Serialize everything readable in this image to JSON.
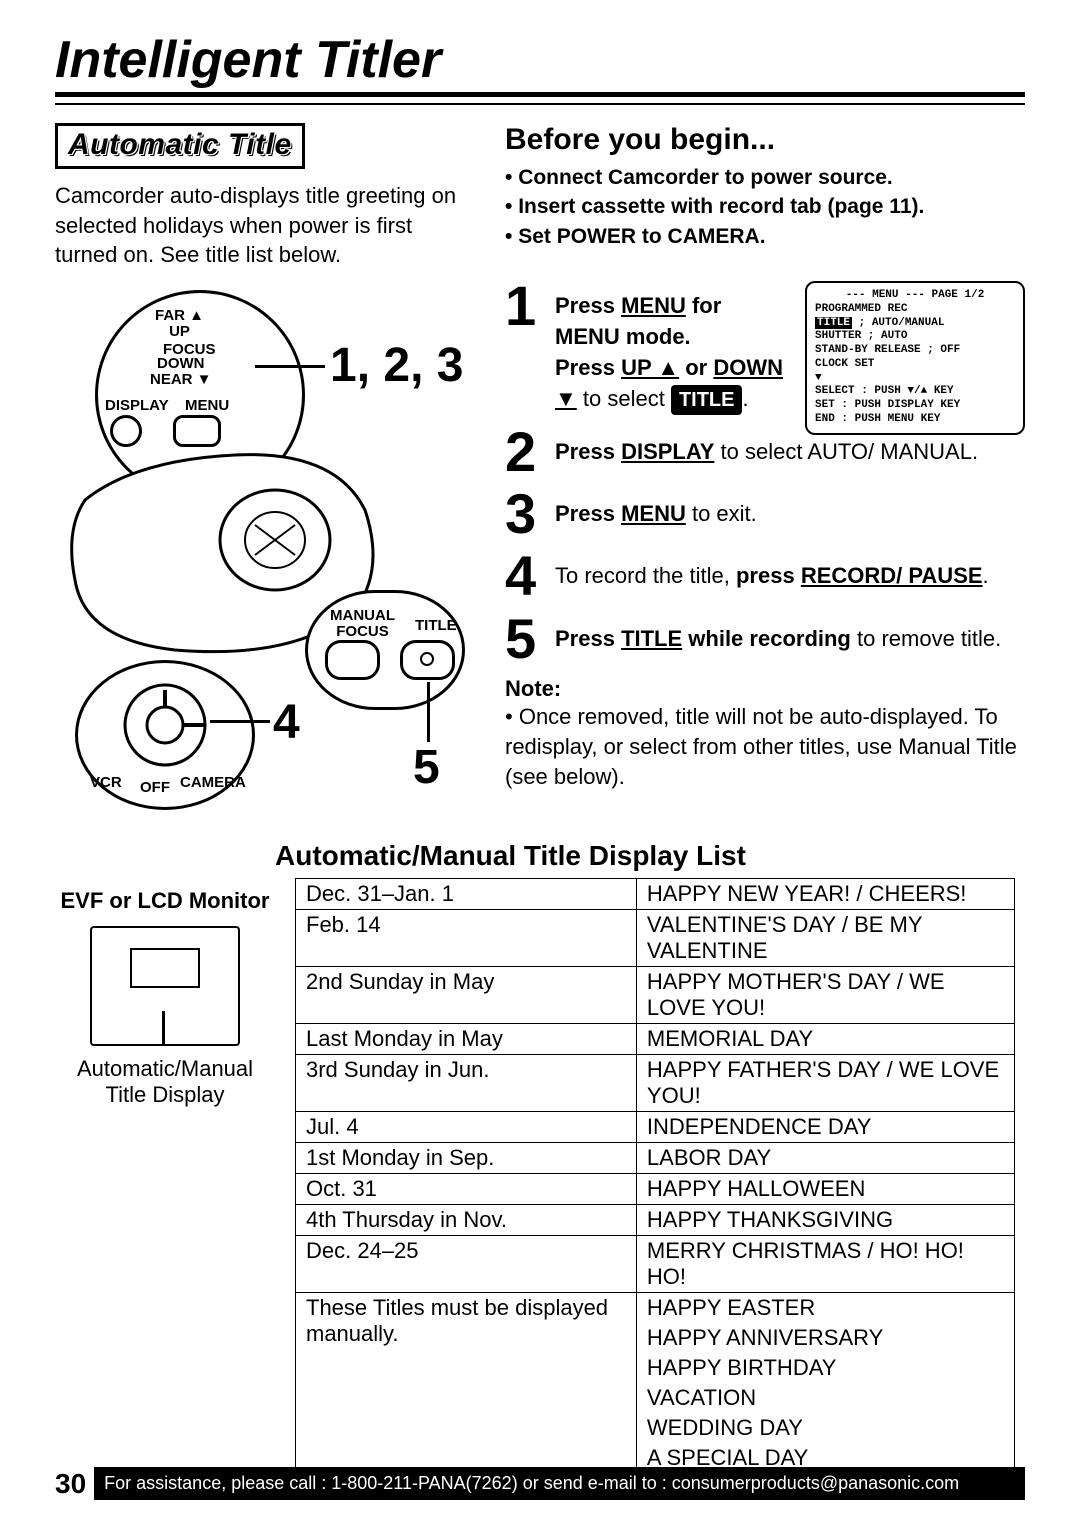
{
  "page_title": "Intelligent Titler",
  "section_title": "Automatic Title",
  "intro": "Camcorder auto-displays title greeting on selected holidays when power is first turned on. See title list below.",
  "before": {
    "heading": "Before you begin...",
    "items": [
      "Connect Camcorder to power source.",
      "Insert cassette with record tab (page 11).",
      "Set POWER to CAMERA."
    ]
  },
  "steps": {
    "s1a": "Press ",
    "s1b": "MENU",
    "s1c": " for MENU mode.",
    "s1d": "Press ",
    "s1e": "UP ▲",
    "s1f": " or ",
    "s1g": "DOWN ▼",
    "s1h": " to select ",
    "s1i": "TITLE",
    "s1j": ".",
    "s2a": "Press ",
    "s2b": "DISPLAY",
    "s2c": " to select AUTO/ MANUAL.",
    "s3a": "Press ",
    "s3b": "MENU",
    "s3c": " to exit.",
    "s4a": "To record the title, ",
    "s4b": "press ",
    "s4c": "RECORD/ PAUSE",
    "s4d": ".",
    "s5a": "Press ",
    "s5b": "TITLE",
    "s5c": " while recording",
    "s5d": " to remove title."
  },
  "menu_screen": {
    "l1": "--- MENU ---   PAGE 1/2",
    "l2": "PROGRAMMED REC",
    "l3a": "TITLE",
    "l3b": "     ; AUTO/MANUAL",
    "l4": "SHUTTER      ; AUTO",
    "l5": "STAND-BY RELEASE ; OFF",
    "l6": "CLOCK SET",
    "l7": "  ▼",
    "l8": "SELECT : PUSH ▼/▲ KEY",
    "l9": "SET    : PUSH DISPLAY KEY",
    "l10": "END    : PUSH MENU KEY"
  },
  "note": {
    "heading": "Note:",
    "body": "Once removed, title will not be auto-displayed. To redisplay, or select from other titles, use Manual Title (see below)."
  },
  "list_heading": "Automatic/Manual Title Display List",
  "evf_caption": "EVF or LCD Monitor",
  "evf_caption2": "Automatic/Manual Title Display",
  "diagram_labels": {
    "big123": "1, 2, 3",
    "n4": "4",
    "n5": "5",
    "far_up": "FAR ▲\nUP",
    "focus": "FOCUS",
    "near_down": "DOWN\nNEAR ▼",
    "display": "DISPLAY",
    "menu": "MENU",
    "manual_focus": "MANUAL\nFOCUS",
    "title": "TITLE",
    "vcr": "VCR",
    "off": "OFF",
    "camera": "CAMERA"
  },
  "table": {
    "rows": [
      [
        "Dec. 31–Jan. 1",
        "HAPPY NEW YEAR! / CHEERS!"
      ],
      [
        "Feb. 14",
        "VALENTINE'S DAY / BE MY VALENTINE"
      ],
      [
        "2nd Sunday in May",
        "HAPPY MOTHER'S DAY / WE LOVE YOU!"
      ],
      [
        "Last Monday in May",
        "MEMORIAL DAY"
      ],
      [
        "3rd Sunday in Jun.",
        "HAPPY FATHER'S DAY / WE LOVE YOU!"
      ],
      [
        "Jul. 4",
        "INDEPENDENCE DAY"
      ],
      [
        "1st Monday in Sep.",
        "LABOR DAY"
      ],
      [
        "Oct. 31",
        "HAPPY HALLOWEEN"
      ],
      [
        "4th Thursday in Nov.",
        "HAPPY THANKSGIVING"
      ],
      [
        "Dec. 24–25",
        "MERRY CHRISTMAS / HO! HO! HO!"
      ]
    ],
    "manual_left": "These Titles must be displayed manually.",
    "manual_titles": [
      "HAPPY EASTER",
      "HAPPY ANNIVERSARY",
      "HAPPY BIRTHDAY",
      "VACATION",
      "WEDDING DAY",
      "A SPECIAL DAY"
    ]
  },
  "footer": {
    "page": "30",
    "text": "For assistance, please call : 1-800-211-PANA(7262) or send e-mail to : consumerproducts@panasonic.com"
  }
}
